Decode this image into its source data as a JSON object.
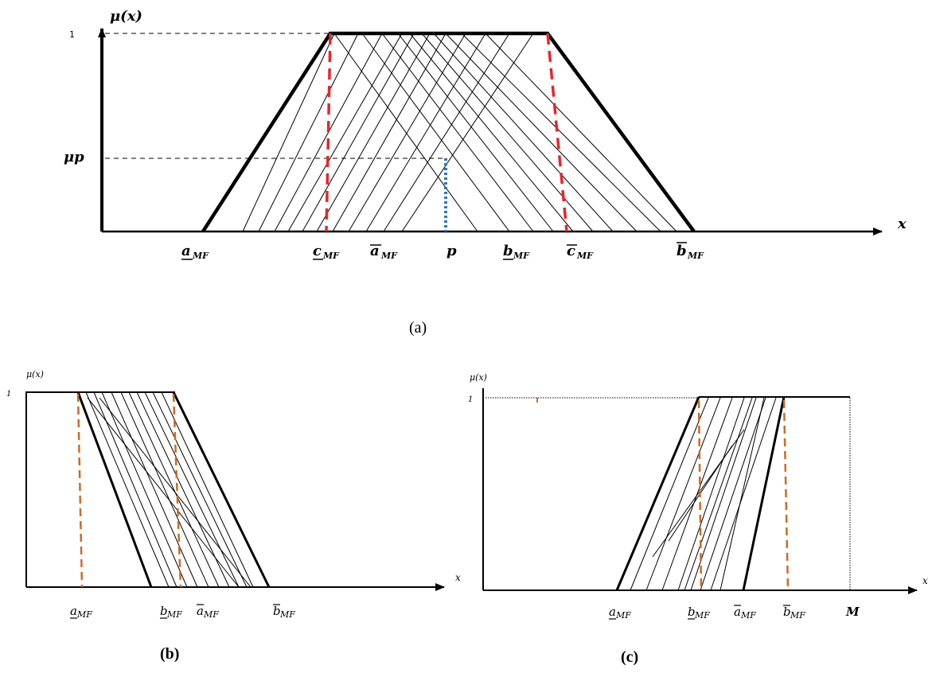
{
  "panel_a": {
    "caption": "(a)",
    "y_axis_label": "μ(x)",
    "x_axis_label": "x",
    "one_tick": "1",
    "mu_p_label": "μp",
    "x_labels": {
      "a_lower": "a",
      "c_lower": "c",
      "a_upper": "a",
      "p": "p",
      "b_lower": "b",
      "c_upper": "c",
      "b_upper": "b",
      "subscript": "MF"
    }
  },
  "panel_b": {
    "caption": "(b)",
    "y_axis_label": "μ(x)",
    "x_axis_label": "x",
    "one_tick": "1",
    "x_labels": {
      "a_lower": "a",
      "b_lower": "b",
      "a_upper": "a",
      "b_upper": "b",
      "subscript": "MF"
    }
  },
  "panel_c": {
    "caption": "(c)",
    "y_axis_label": "μ(x)",
    "x_axis_label": "x",
    "one_tick": "1",
    "x_labels": {
      "a_lower": "a",
      "b_lower": "b",
      "a_upper": "a",
      "b_upper": "b",
      "m": "M",
      "subscript": "MF"
    }
  },
  "colors": {
    "line": "#000000",
    "red_dash": "#e8252a",
    "orange_dash": "#d2691e",
    "blue_dot": "#2e75c6"
  }
}
